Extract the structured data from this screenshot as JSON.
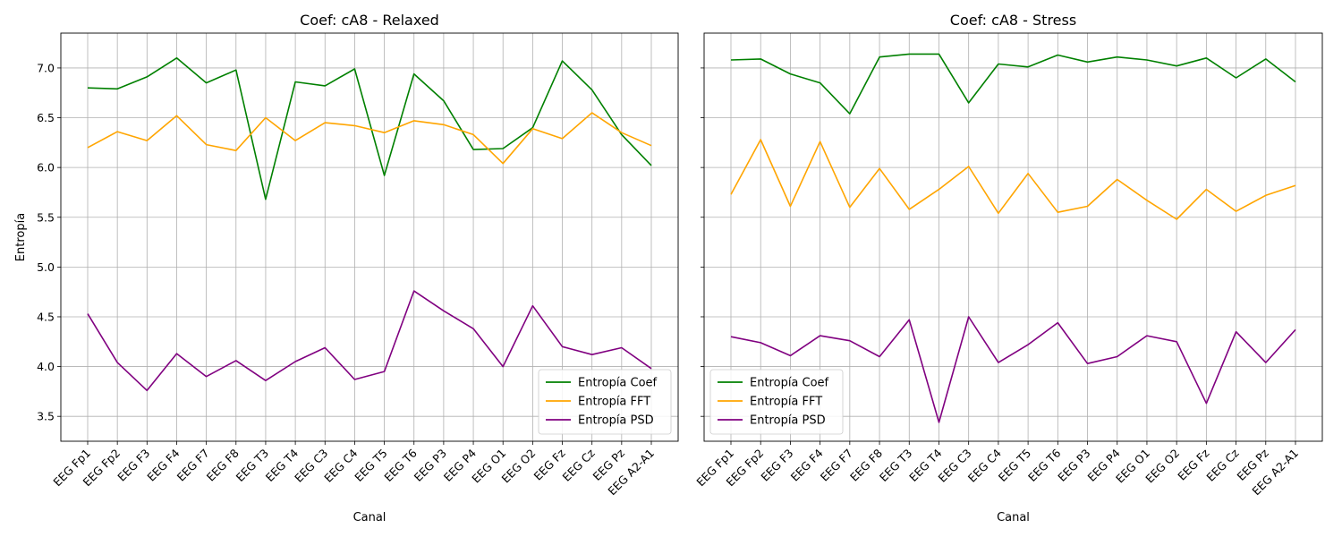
{
  "chart_data": [
    {
      "type": "line",
      "title": "Coef: cA8 - Relaxed",
      "xlabel": "Canal",
      "ylabel": "Entropía",
      "ylim": [
        3.25,
        7.35
      ],
      "yticks": [
        "3.5",
        "4.0",
        "4.5",
        "5.0",
        "5.5",
        "6.0",
        "6.5",
        "7.0"
      ],
      "grid": true,
      "legend_position": "lower-right",
      "categories": [
        "EEG Fp1",
        "EEG Fp2",
        "EEG F3",
        "EEG F4",
        "EEG F7",
        "EEG F8",
        "EEG T3",
        "EEG T4",
        "EEG C3",
        "EEG C4",
        "EEG T5",
        "EEG T6",
        "EEG P3",
        "EEG P4",
        "EEG O1",
        "EEG O2",
        "EEG Fz",
        "EEG Cz",
        "EEG Pz",
        "EEG A2-A1"
      ],
      "series": [
        {
          "name": "Entropía Coef",
          "color": "#008000",
          "values": [
            6.8,
            6.79,
            6.91,
            7.1,
            6.85,
            6.98,
            5.68,
            6.86,
            6.82,
            6.99,
            5.92,
            6.94,
            6.67,
            6.18,
            6.19,
            6.4,
            7.07,
            6.78,
            6.33,
            6.02
          ]
        },
        {
          "name": "Entropía FFT",
          "color": "#FFA500",
          "values": [
            6.2,
            6.36,
            6.27,
            6.52,
            6.23,
            6.17,
            6.5,
            6.27,
            6.45,
            6.42,
            6.35,
            6.47,
            6.43,
            6.33,
            6.04,
            6.39,
            6.29,
            6.55,
            6.35,
            6.22
          ]
        },
        {
          "name": "Entropía PSD",
          "color": "#800080",
          "values": [
            4.53,
            4.04,
            3.76,
            4.13,
            3.9,
            4.06,
            3.86,
            4.05,
            4.19,
            3.87,
            3.95,
            4.76,
            4.56,
            4.38,
            4.0,
            4.61,
            4.2,
            4.12,
            4.19,
            3.98
          ]
        }
      ]
    },
    {
      "type": "line",
      "title": "Coef: cA8 - Stress",
      "xlabel": "Canal",
      "ylabel": "",
      "ylim": [
        3.25,
        7.35
      ],
      "grid": true,
      "legend_position": "lower-left",
      "categories": [
        "EEG Fp1",
        "EEG Fp2",
        "EEG F3",
        "EEG F4",
        "EEG F7",
        "EEG F8",
        "EEG T3",
        "EEG T4",
        "EEG C3",
        "EEG C4",
        "EEG T5",
        "EEG T6",
        "EEG P3",
        "EEG P4",
        "EEG O1",
        "EEG O2",
        "EEG Fz",
        "EEG Cz",
        "EEG Pz",
        "EEG A2-A1"
      ],
      "series": [
        {
          "name": "Entropía Coef",
          "color": "#008000",
          "values": [
            7.08,
            7.09,
            6.94,
            6.85,
            6.54,
            7.11,
            7.14,
            7.14,
            6.65,
            7.04,
            7.01,
            7.13,
            7.06,
            7.11,
            7.08,
            7.02,
            7.1,
            6.9,
            7.09,
            6.86
          ]
        },
        {
          "name": "Entropía FFT",
          "color": "#FFA500",
          "values": [
            5.73,
            6.28,
            5.61,
            6.26,
            5.6,
            5.99,
            5.58,
            5.78,
            6.01,
            5.54,
            5.94,
            5.55,
            5.61,
            5.88,
            5.67,
            5.48,
            5.78,
            5.56,
            5.72,
            5.82
          ]
        },
        {
          "name": "Entropía PSD",
          "color": "#800080",
          "values": [
            4.3,
            4.24,
            4.11,
            4.31,
            4.26,
            4.1,
            4.47,
            3.44,
            4.5,
            4.04,
            4.22,
            4.44,
            4.03,
            4.1,
            4.31,
            4.25,
            3.63,
            4.35,
            4.04,
            4.37
          ]
        }
      ]
    }
  ]
}
